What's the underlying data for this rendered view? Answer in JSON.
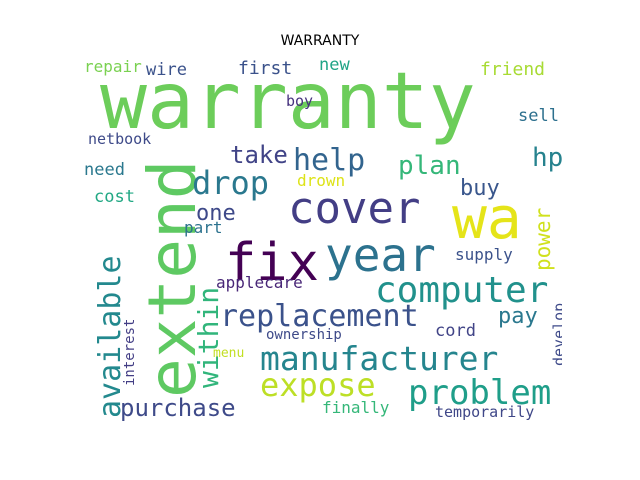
{
  "title": "WARRANTY",
  "words": [
    {
      "text": "warranty",
      "color": "#6ccd5a"
    },
    {
      "text": "extend",
      "color": "#5ec962"
    },
    {
      "text": "wa",
      "color": "#e5e419"
    },
    {
      "text": "year",
      "color": "#2c728e"
    },
    {
      "text": "cover",
      "color": "#433e85"
    },
    {
      "text": "fix",
      "color": "#440154"
    },
    {
      "text": "computer",
      "color": "#21918c"
    },
    {
      "text": "problem",
      "color": "#1f9e89"
    },
    {
      "text": "manufacturer",
      "color": "#25858e"
    },
    {
      "text": "replacement",
      "color": "#3b528b"
    },
    {
      "text": "available",
      "color": "#23898e"
    },
    {
      "text": "expose",
      "color": "#bddf26"
    },
    {
      "text": "within",
      "color": "#31b57b"
    },
    {
      "text": "help",
      "color": "#32648e"
    },
    {
      "text": "drop",
      "color": "#2a788e"
    },
    {
      "text": "plan",
      "color": "#35b779"
    },
    {
      "text": "purchase",
      "color": "#3e4a89"
    },
    {
      "text": "hp",
      "color": "#26828e"
    },
    {
      "text": "take",
      "color": "#414487"
    },
    {
      "text": "buy",
      "color": "#39568c"
    },
    {
      "text": "power",
      "color": "#d0e11c"
    },
    {
      "text": "pay",
      "color": "#2a788e"
    },
    {
      "text": "one",
      "color": "#3e4989"
    },
    {
      "text": "first",
      "color": "#3b528b"
    },
    {
      "text": "new",
      "color": "#20a486"
    },
    {
      "text": "friend",
      "color": "#a8db34"
    },
    {
      "text": "wire",
      "color": "#3b528b"
    },
    {
      "text": "repair",
      "color": "#7ad151"
    },
    {
      "text": "boy",
      "color": "#46327e"
    },
    {
      "text": "sell",
      "color": "#2d708e"
    },
    {
      "text": "netbook",
      "color": "#3e4a89"
    },
    {
      "text": "need",
      "color": "#2a788e"
    },
    {
      "text": "drown",
      "color": "#dde318"
    },
    {
      "text": "cost",
      "color": "#22a884"
    },
    {
      "text": "part",
      "color": "#2c728e"
    },
    {
      "text": "supply",
      "color": "#3b528b"
    },
    {
      "text": "applecare",
      "color": "#482677"
    },
    {
      "text": "develop",
      "color": "#3e4a89"
    },
    {
      "text": "cord",
      "color": "#414487"
    },
    {
      "text": "ownership",
      "color": "#3e4a89"
    },
    {
      "text": "interest",
      "color": "#433e85"
    },
    {
      "text": "menu",
      "color": "#c2df23"
    },
    {
      "text": "finally",
      "color": "#35b779"
    },
    {
      "text": "temporarily",
      "color": "#3f4788"
    }
  ]
}
